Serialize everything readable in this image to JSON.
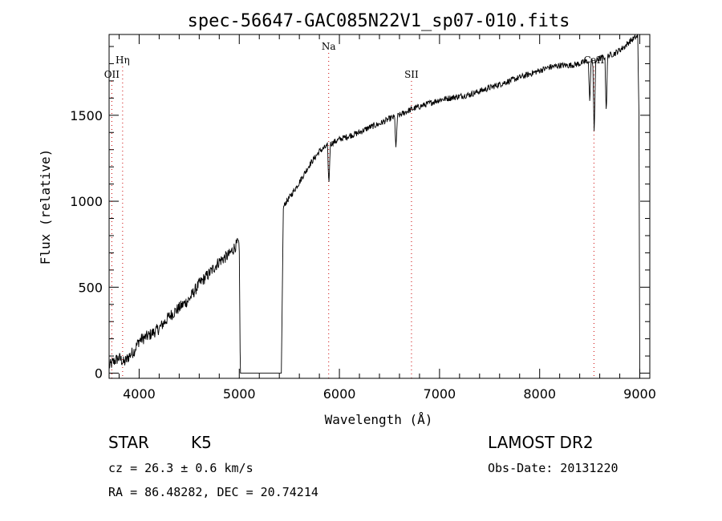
{
  "chart_data": {
    "type": "line",
    "title": "spec-56647-GAC085N22V1_sp07-010.fits",
    "xlabel": "Wavelength (Å)",
    "ylabel": "Flux (relative)",
    "xlim": [
      3700,
      9100
    ],
    "ylim": [
      -30,
      1970
    ],
    "x_ticks": [
      4000,
      5000,
      6000,
      7000,
      8000,
      9000
    ],
    "y_ticks": [
      0,
      500,
      1000,
      1500
    ],
    "x_tick_labels": [
      "4000",
      "5000",
      "6000",
      "7000",
      "8000",
      "9000"
    ],
    "y_tick_labels": [
      "0",
      "500",
      "1000",
      "1500"
    ],
    "line_color": "#000000",
    "marker_color": "#cc0000",
    "series": [
      {
        "x": [
          3700,
          3750,
          3800,
          3850,
          3900,
          3950,
          4000,
          4100,
          4200,
          4300,
          4400,
          4500,
          4600,
          4700,
          4800,
          4900,
          4950,
          4990,
          5000,
          5010,
          5100,
          5200,
          5300,
          5400,
          5420,
          5440,
          5460,
          5500,
          5600,
          5700,
          5800,
          5900,
          6000,
          6100,
          6200,
          6300,
          6400,
          6500,
          6600,
          6700,
          6800,
          6900,
          7000,
          7100,
          7200,
          7300,
          7400,
          7500,
          7600,
          7700,
          7800,
          7900,
          8000,
          8100,
          8200,
          8300,
          8400,
          8450,
          8500,
          8550,
          8600,
          8650,
          8700,
          8750,
          8800,
          8850,
          8900,
          8950,
          8980,
          8990,
          9000
        ],
        "y": [
          40,
          70,
          90,
          60,
          100,
          130,
          190,
          220,
          260,
          330,
          380,
          430,
          520,
          580,
          650,
          690,
          730,
          760,
          700,
          0,
          0,
          0,
          0,
          0,
          0,
          960,
          990,
          1020,
          1110,
          1210,
          1290,
          1330,
          1360,
          1380,
          1400,
          1430,
          1450,
          1480,
          1500,
          1530,
          1550,
          1570,
          1590,
          1600,
          1610,
          1620,
          1640,
          1660,
          1680,
          1700,
          1720,
          1740,
          1760,
          1780,
          1790,
          1790,
          1800,
          1810,
          1820,
          1810,
          1830,
          1840,
          1850,
          1860,
          1880,
          1900,
          1930,
          1950,
          1960,
          1500,
          0
        ]
      }
    ],
    "absorption_dips": [
      {
        "x": 5895,
        "depth": 240
      },
      {
        "x": 6565,
        "depth": 200
      },
      {
        "x": 8500,
        "depth": 250
      },
      {
        "x": 8545,
        "depth": 440
      },
      {
        "x": 8665,
        "depth": 330
      }
    ],
    "line_markers": [
      {
        "label": "OII",
        "x": 3727,
        "row": 2
      },
      {
        "label": "Hη",
        "x": 3835,
        "row": 1
      },
      {
        "label": "Na",
        "x": 5893,
        "row": 0
      },
      {
        "label": "SII",
        "x": 6720,
        "row": 2
      },
      {
        "label": "CaII",
        "x": 8542,
        "row": 1
      }
    ]
  },
  "info": {
    "object_class": "STAR",
    "subclass": "K5",
    "cz": "cz = 26.3 ± 0.6 km/s",
    "coords": "RA =  86.48282, DEC =  20.74214",
    "survey": "LAMOST DR2",
    "obs_date": "Obs-Date: 20131220"
  }
}
